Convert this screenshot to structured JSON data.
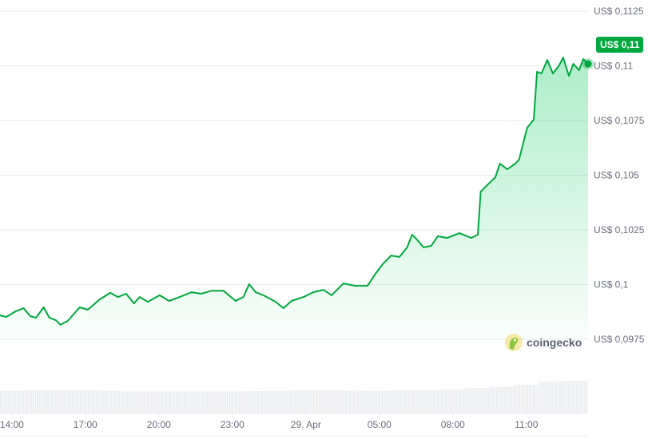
{
  "chart_data": {
    "type": "area",
    "title": "",
    "xlabel": "",
    "ylabel": "",
    "currency_prefix": "US$",
    "ylim": [
      0.0975,
      0.1125
    ],
    "y_ticks": [
      "US$ 0,1125",
      "US$ 0,11",
      "US$ 0,1075",
      "US$ 0,105",
      "US$ 0,1025",
      "US$ 0,1",
      "US$ 0,0975"
    ],
    "y_tick_values": [
      0.1125,
      0.11,
      0.1075,
      0.105,
      0.1025,
      0.1,
      0.0975
    ],
    "x_ticks": [
      "14:00",
      "17:00",
      "20:00",
      "23:00",
      "29. Apr",
      "05:00",
      "08:00",
      "11:00"
    ],
    "x_tick_times": [
      "28 14:00",
      "28 17:00",
      "28 20:00",
      "28 23:00",
      "29 02:00",
      "29 05:00",
      "29 08:00",
      "29 11:00"
    ],
    "x_range": [
      "28 13:31",
      "29 13:31"
    ],
    "grid": true,
    "line_color": "#00a83e",
    "fill_color": "#00c853",
    "current_price_label": "US$ 0,11",
    "series": [
      {
        "x": [
          "28 13:31",
          "28 13:46",
          "28 14:10",
          "28 14:29",
          "28 14:45",
          "28 14:59",
          "28 15:18",
          "28 15:32",
          "28 15:48",
          "28 15:59",
          "28 16:17",
          "28 16:46",
          "28 17:06",
          "28 17:35",
          "28 18:01",
          "28 18:20",
          "28 18:40",
          "28 18:59",
          "28 19:13",
          "28 19:33",
          "28 20:02",
          "28 20:25",
          "28 20:51",
          "28 21:20",
          "28 21:44",
          "28 22:09",
          "28 22:38",
          "28 23:08",
          "28 23:27",
          "28 23:41",
          "28 23:57",
          "29 00:16",
          "29 00:46",
          "29 01:05",
          "29 01:25",
          "29 01:54",
          "29 02:18",
          "29 02:43",
          "29 03:03",
          "29 03:32",
          "29 04:01",
          "29 04:31",
          "29 04:50",
          "29 05:10",
          "29 05:29",
          "29 05:49",
          "29 06:08",
          "29 06:20",
          "29 06:32",
          "29 06:48",
          "29 07:07",
          "29 07:23",
          "29 07:46",
          "29 08:16",
          "29 08:45",
          "29 09:01",
          "29 09:08",
          "29 09:28",
          "29 09:44",
          "29 09:55",
          "29 10:13",
          "29 10:33",
          "29 10:42",
          "29 10:52",
          "29 11:02",
          "29 11:18",
          "29 11:26",
          "29 11:37",
          "29 11:51",
          "29 12:05",
          "29 12:20",
          "29 12:30",
          "29 12:44",
          "29 12:55",
          "29 13:09",
          "29 13:19",
          "29 13:31"
        ],
        "y": [
          0.09859,
          0.09852,
          0.09878,
          0.09892,
          0.09856,
          0.09848,
          0.09896,
          0.09848,
          0.09837,
          0.09816,
          0.09834,
          0.09896,
          0.09885,
          0.09932,
          0.09962,
          0.09943,
          0.09958,
          0.09914,
          0.09943,
          0.09921,
          0.09951,
          0.09925,
          0.09943,
          0.09965,
          0.09958,
          0.09972,
          0.09972,
          0.09925,
          0.09943,
          0.10002,
          0.09965,
          0.09951,
          0.09921,
          0.09892,
          0.09925,
          0.09943,
          0.09965,
          0.09976,
          0.09951,
          0.10005,
          0.09994,
          0.09994,
          0.10049,
          0.10097,
          0.10133,
          0.10126,
          0.1017,
          0.10228,
          0.10206,
          0.1017,
          0.10177,
          0.10221,
          0.10213,
          0.10235,
          0.10213,
          0.10228,
          0.10425,
          0.10462,
          0.10491,
          0.10553,
          0.10527,
          0.10553,
          0.10571,
          0.10644,
          0.10717,
          0.10754,
          0.10973,
          0.10965,
          0.11027,
          0.10965,
          0.11002,
          0.11038,
          0.10954,
          0.11009,
          0.1098,
          0.11031,
          0.11009
        ]
      }
    ],
    "volume_relative": [
      0.55,
      0.56,
      0.56,
      0.57,
      0.55,
      0.53,
      0.53,
      0.53,
      0.53,
      0.53,
      0.54,
      0.55,
      0.56,
      0.56,
      0.55,
      0.55,
      0.56,
      0.57,
      0.58,
      0.62,
      0.65,
      0.7,
      0.78,
      0.8
    ]
  },
  "watermark": {
    "brand": "coingecko"
  }
}
